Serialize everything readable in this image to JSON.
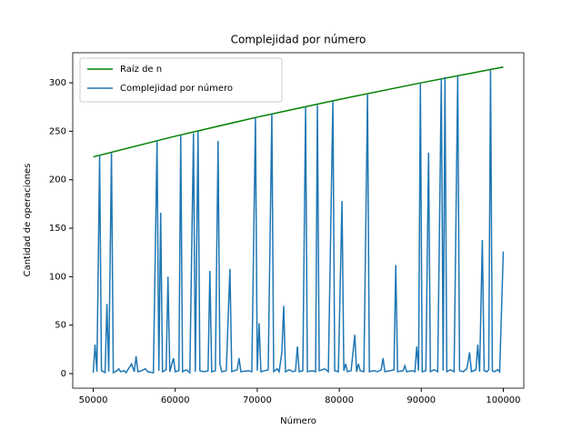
{
  "chart_data": {
    "type": "line",
    "title": "Complejidad por número",
    "xlabel": "Número",
    "ylabel": "Cantidad de operaciones",
    "xlim": [
      47500,
      102500
    ],
    "ylim": [
      -15,
      331
    ],
    "xticks": [
      50000,
      60000,
      70000,
      80000,
      90000,
      100000
    ],
    "yticks": [
      0,
      50,
      100,
      150,
      200,
      250,
      300
    ],
    "legend": "upper left",
    "grid": false,
    "series": [
      {
        "name": "Raíz de n",
        "color": "#008000",
        "x": [
          50000,
          60000,
          70000,
          80000,
          90000,
          100000
        ],
        "values": [
          223.6,
          244.9,
          264.6,
          282.8,
          300,
          316.2
        ]
      },
      {
        "name": "Complejidad por número",
        "color": "#1f77b4",
        "x": [
          50000,
          50222,
          50444,
          50778,
          51000,
          51444,
          51667,
          51889,
          52222,
          52444,
          52889,
          53111,
          53333,
          53778,
          54000,
          54667,
          55000,
          55222,
          55444,
          55889,
          56333,
          56667,
          57333,
          57778,
          58000,
          58222,
          58444,
          58889,
          59111,
          59333,
          59778,
          60000,
          60444,
          60667,
          60889,
          61333,
          61778,
          62222,
          62444,
          62778,
          63000,
          63556,
          64000,
          64222,
          64444,
          64889,
          65222,
          65444,
          65667,
          66222,
          66667,
          66889,
          67556,
          67778,
          68000,
          68889,
          69333,
          69778,
          70000,
          70222,
          70444,
          70889,
          71333,
          71778,
          72000,
          72444,
          72667,
          73000,
          73222,
          73444,
          73889,
          74333,
          74667,
          74889,
          75111,
          75556,
          75889,
          76111,
          76667,
          77111,
          77333,
          77556,
          78222,
          78667,
          79222,
          79444,
          79889,
          80333,
          80556,
          80778,
          81000,
          81444,
          81889,
          82111,
          82333,
          82556,
          83000,
          83444,
          83667,
          84222,
          84667,
          85111,
          85333,
          85556,
          86222,
          86667,
          86889,
          87111,
          87778,
          88000,
          88222,
          88889,
          89222,
          89444,
          89667,
          89889,
          90111,
          90556,
          90889,
          91111,
          91556,
          92000,
          92444,
          92667,
          92889,
          93111,
          93556,
          94000,
          94444,
          94667,
          95111,
          95556,
          95889,
          96111,
          96667,
          96889,
          97111,
          97444,
          97667,
          98000,
          98222,
          98444,
          98667,
          98889,
          99333,
          99556,
          100000
        ],
        "values": [
          1,
          30,
          2,
          225,
          3,
          1,
          72,
          2,
          228,
          1,
          3,
          5,
          2,
          3,
          1,
          10,
          2,
          18,
          2,
          3,
          5,
          2,
          1,
          240,
          3,
          166,
          2,
          4,
          100,
          2,
          16,
          2,
          3,
          246,
          2,
          4,
          1,
          248,
          2,
          250,
          3,
          2,
          3,
          106,
          2,
          3,
          240,
          10,
          2,
          3,
          108,
          2,
          4,
          16,
          2,
          3,
          2,
          264,
          3,
          52,
          2,
          3,
          4,
          268,
          2,
          5,
          2,
          22,
          70,
          2,
          4,
          2,
          3,
          28,
          2,
          3,
          275,
          2,
          3,
          2,
          277,
          3,
          5,
          2,
          281,
          3,
          2,
          178,
          3,
          10,
          2,
          3,
          40,
          2,
          10,
          3,
          2,
          288,
          2,
          3,
          2,
          4,
          16,
          2,
          3,
          4,
          112,
          2,
          3,
          8,
          2,
          3,
          2,
          28,
          3,
          299,
          2,
          3,
          228,
          2,
          4,
          2,
          304,
          3,
          306,
          2,
          4,
          2,
          307,
          3,
          2,
          5,
          22,
          2,
          4,
          30,
          2,
          138,
          3,
          2,
          4,
          313,
          3,
          2,
          4,
          2,
          126
        ]
      }
    ]
  }
}
